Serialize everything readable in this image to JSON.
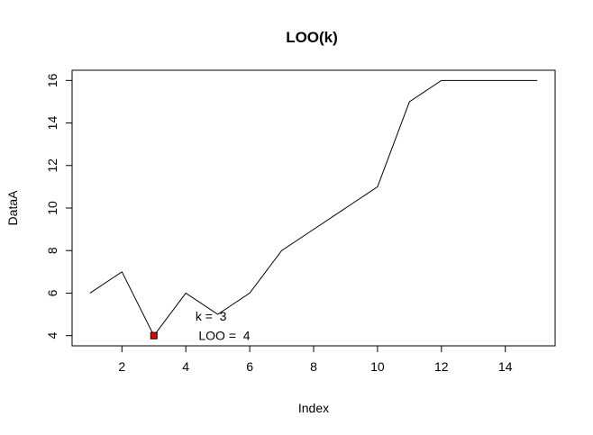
{
  "chart_data": {
    "type": "line",
    "title": "LOO(k)",
    "xlabel": "Index",
    "ylabel": "DataA",
    "x": [
      1,
      2,
      3,
      4,
      5,
      6,
      7,
      8,
      9,
      10,
      11,
      12,
      13,
      14,
      15
    ],
    "series": [
      {
        "values": [
          6,
          7,
          4,
          6,
          5,
          6,
          8,
          9,
          10,
          11,
          15,
          16,
          16,
          16,
          16
        ]
      }
    ],
    "xlim": [
      0.44,
      15.56
    ],
    "ylim": [
      3.52,
      16.48
    ],
    "xticks": [
      2,
      4,
      6,
      8,
      10,
      12,
      14
    ],
    "yticks": [
      4,
      6,
      8,
      10,
      12,
      14,
      16
    ],
    "grid": false,
    "highlight": {
      "x": 3,
      "y": 4,
      "color": "#e00000"
    },
    "annotations": [
      {
        "text": "k =  3",
        "x": 4.3,
        "y": 4.7
      },
      {
        "text": "LOO =  4",
        "x": 4.4,
        "y": 3.8
      }
    ]
  }
}
